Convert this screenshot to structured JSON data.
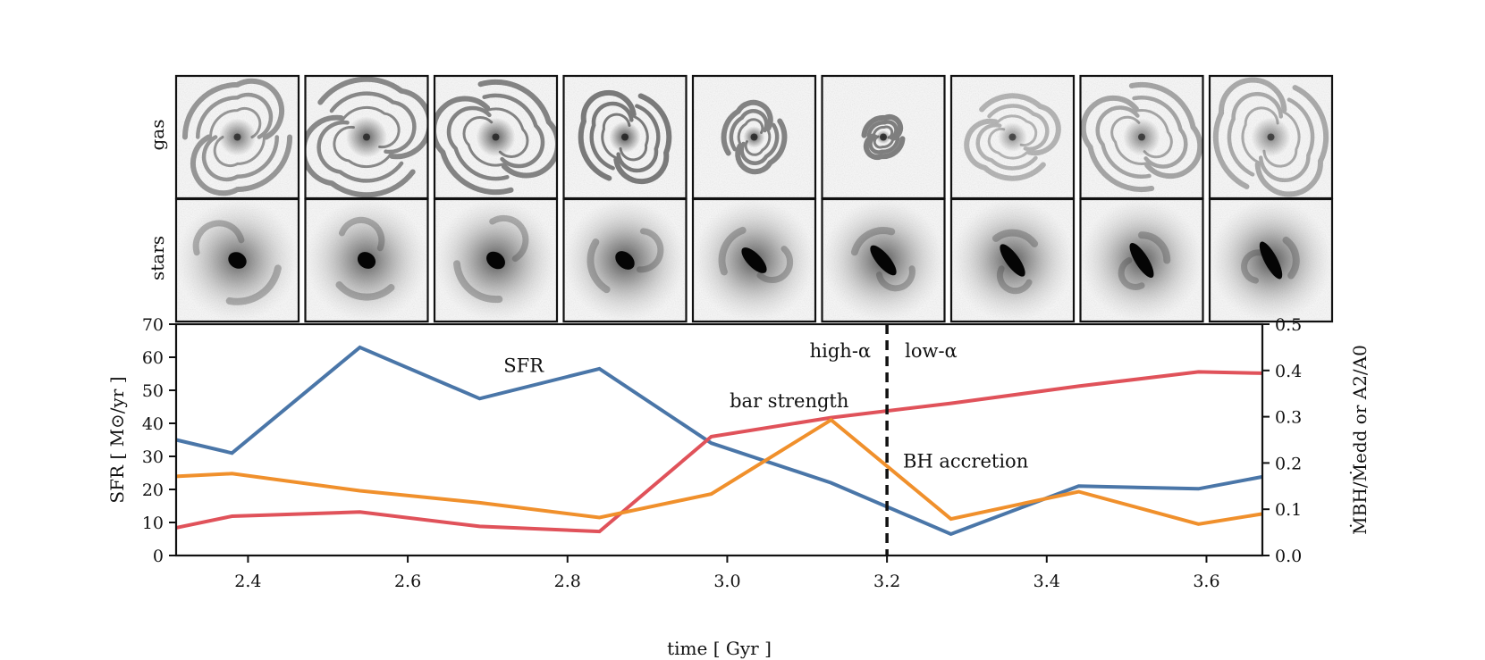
{
  "colors": {
    "sfr": "#4a76a8",
    "bar_strength": "#e0525a",
    "bh_accretion": "#f0902c",
    "axes": "#111111",
    "panel_border": "#111111"
  },
  "thumbnails": {
    "row_labels": [
      "gas",
      "stars"
    ],
    "columns": 9,
    "gas": [
      {
        "arm_scale": 0.95,
        "darkness": 0.55,
        "bar": 0.0
      },
      {
        "arm_scale": 1.05,
        "darkness": 0.7,
        "bar": 0.0
      },
      {
        "arm_scale": 1.0,
        "darkness": 0.75,
        "bar": 0.0
      },
      {
        "arm_scale": 0.8,
        "darkness": 0.85,
        "bar": 0.0
      },
      {
        "arm_scale": 0.55,
        "darkness": 0.75,
        "bar": 0.2
      },
      {
        "arm_scale": 0.35,
        "darkness": 0.8,
        "bar": 0.3
      },
      {
        "arm_scale": 0.75,
        "darkness": 0.25,
        "bar": 0.0
      },
      {
        "arm_scale": 0.95,
        "darkness": 0.4,
        "bar": 0.0
      },
      {
        "arm_scale": 1.0,
        "darkness": 0.35,
        "bar": 0.0
      }
    ],
    "stars": [
      {
        "arm_scale": 0.9,
        "darkness": 0.55,
        "bar": 0.1
      },
      {
        "arm_scale": 0.8,
        "darkness": 0.6,
        "bar": 0.1
      },
      {
        "arm_scale": 0.85,
        "darkness": 0.65,
        "bar": 0.15
      },
      {
        "arm_scale": 0.75,
        "darkness": 0.7,
        "bar": 0.2
      },
      {
        "arm_scale": 0.7,
        "darkness": 0.65,
        "bar": 0.6
      },
      {
        "arm_scale": 0.65,
        "darkness": 0.65,
        "bar": 0.75
      },
      {
        "arm_scale": 0.6,
        "darkness": 0.65,
        "bar": 0.8
      },
      {
        "arm_scale": 0.55,
        "darkness": 0.65,
        "bar": 0.85
      },
      {
        "arm_scale": 0.55,
        "darkness": 0.7,
        "bar": 0.9
      }
    ]
  },
  "chart_data": {
    "type": "line",
    "xlabel": "time [ Gyr ]",
    "ylabel_left": "SFR [ M⊙/yr ]",
    "ylabel_right": "ṀBH/Ṁedd or A2/A0",
    "xlim": [
      2.31,
      3.67
    ],
    "ylim_left": [
      0,
      70
    ],
    "ylim_right": [
      0,
      0.5
    ],
    "xticks": [
      "2.4",
      "2.6",
      "2.8",
      "3.0",
      "3.2",
      "3.4",
      "3.6"
    ],
    "xtick_values": [
      2.4,
      2.6,
      2.8,
      3.0,
      3.2,
      3.4,
      3.6
    ],
    "yticks_left": [
      "0",
      "10",
      "20",
      "30",
      "40",
      "50",
      "60",
      "70"
    ],
    "ytick_values_left": [
      0,
      10,
      20,
      30,
      40,
      50,
      60,
      70
    ],
    "yticks_right": [
      "0.0",
      "0.1",
      "0.2",
      "0.3",
      "0.4",
      "0.5"
    ],
    "ytick_values_right": [
      0.0,
      0.1,
      0.2,
      0.3,
      0.4,
      0.5
    ],
    "grid": false,
    "vline": {
      "x": 3.2,
      "style": "dashed",
      "left_label": "high-α",
      "right_label": "low-α"
    },
    "series": [
      {
        "name": "SFR",
        "axis": "left",
        "color_key": "sfr",
        "x": [
          2.31,
          2.38,
          2.54,
          2.69,
          2.84,
          2.98,
          3.13,
          3.28,
          3.44,
          3.59,
          3.67
        ],
        "y": [
          35,
          31,
          63,
          47.5,
          56.5,
          34,
          22,
          6.5,
          21,
          20.2,
          23.8
        ]
      },
      {
        "name": "bar strength",
        "axis": "right",
        "color_key": "bar_strength",
        "x": [
          2.31,
          2.38,
          2.54,
          2.69,
          2.84,
          2.98,
          3.13,
          3.28,
          3.44,
          3.59,
          3.67
        ],
        "y": [
          0.06,
          0.085,
          0.094,
          0.063,
          0.052,
          0.257,
          0.298,
          0.329,
          0.366,
          0.397,
          0.394
        ]
      },
      {
        "name": "BH accretion",
        "axis": "right",
        "color_key": "bh_accretion",
        "x": [
          2.31,
          2.38,
          2.54,
          2.69,
          2.84,
          2.98,
          3.13,
          3.28,
          3.44,
          3.59,
          3.67
        ],
        "y": [
          0.171,
          0.177,
          0.14,
          0.114,
          0.082,
          0.133,
          0.293,
          0.079,
          0.138,
          0.068,
          0.09
        ]
      }
    ],
    "labels": {
      "sfr": "SFR",
      "bar_strength": "bar strength",
      "bh_accretion": "BH accretion"
    }
  }
}
